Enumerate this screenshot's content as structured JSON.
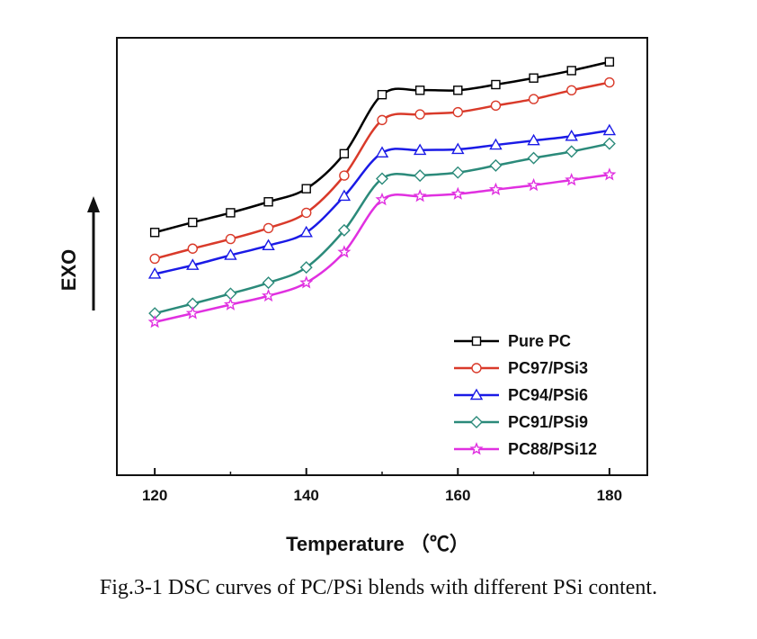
{
  "chart_data": {
    "type": "line",
    "title": "",
    "xlabel": "Temperature （℃）",
    "ylabel": "EXO",
    "xlim": [
      115,
      185
    ],
    "ylim": [
      0,
      10
    ],
    "xticks": [
      120,
      140,
      160,
      180
    ],
    "show_y_ticks": false,
    "grid": false,
    "legend": "bottom-right",
    "x": [
      120,
      125,
      130,
      135,
      140,
      145,
      150,
      155,
      160,
      165,
      170,
      175,
      180
    ],
    "series": [
      {
        "name": "Pure PC",
        "color": "#000000",
        "marker": "square",
        "values": [
          5.55,
          5.78,
          6.0,
          6.25,
          6.55,
          7.35,
          8.7,
          8.8,
          8.8,
          8.93,
          9.08,
          9.25,
          9.45
        ]
      },
      {
        "name": "PC97/PSi3",
        "color": "#d93a2a",
        "marker": "circle",
        "values": [
          4.95,
          5.18,
          5.4,
          5.65,
          6.0,
          6.85,
          8.12,
          8.25,
          8.3,
          8.45,
          8.6,
          8.8,
          8.98
        ]
      },
      {
        "name": "PC94/PSi6",
        "color": "#1a1ae6",
        "marker": "triangle",
        "values": [
          4.6,
          4.8,
          5.03,
          5.25,
          5.55,
          6.38,
          7.37,
          7.43,
          7.45,
          7.55,
          7.65,
          7.75,
          7.88
        ]
      },
      {
        "name": "PC91/PSi9",
        "color": "#2b8a7a",
        "marker": "diamond",
        "values": [
          3.7,
          3.92,
          4.15,
          4.4,
          4.75,
          5.6,
          6.78,
          6.85,
          6.92,
          7.08,
          7.25,
          7.4,
          7.58
        ]
      },
      {
        "name": "PC88/PSi12",
        "color": "#e030e0",
        "marker": "star",
        "values": [
          3.5,
          3.7,
          3.9,
          4.1,
          4.4,
          5.1,
          6.3,
          6.38,
          6.43,
          6.53,
          6.63,
          6.75,
          6.87
        ]
      }
    ]
  },
  "caption": "Fig.3-1 DSC curves of PC/PSi blends with different PSi content."
}
